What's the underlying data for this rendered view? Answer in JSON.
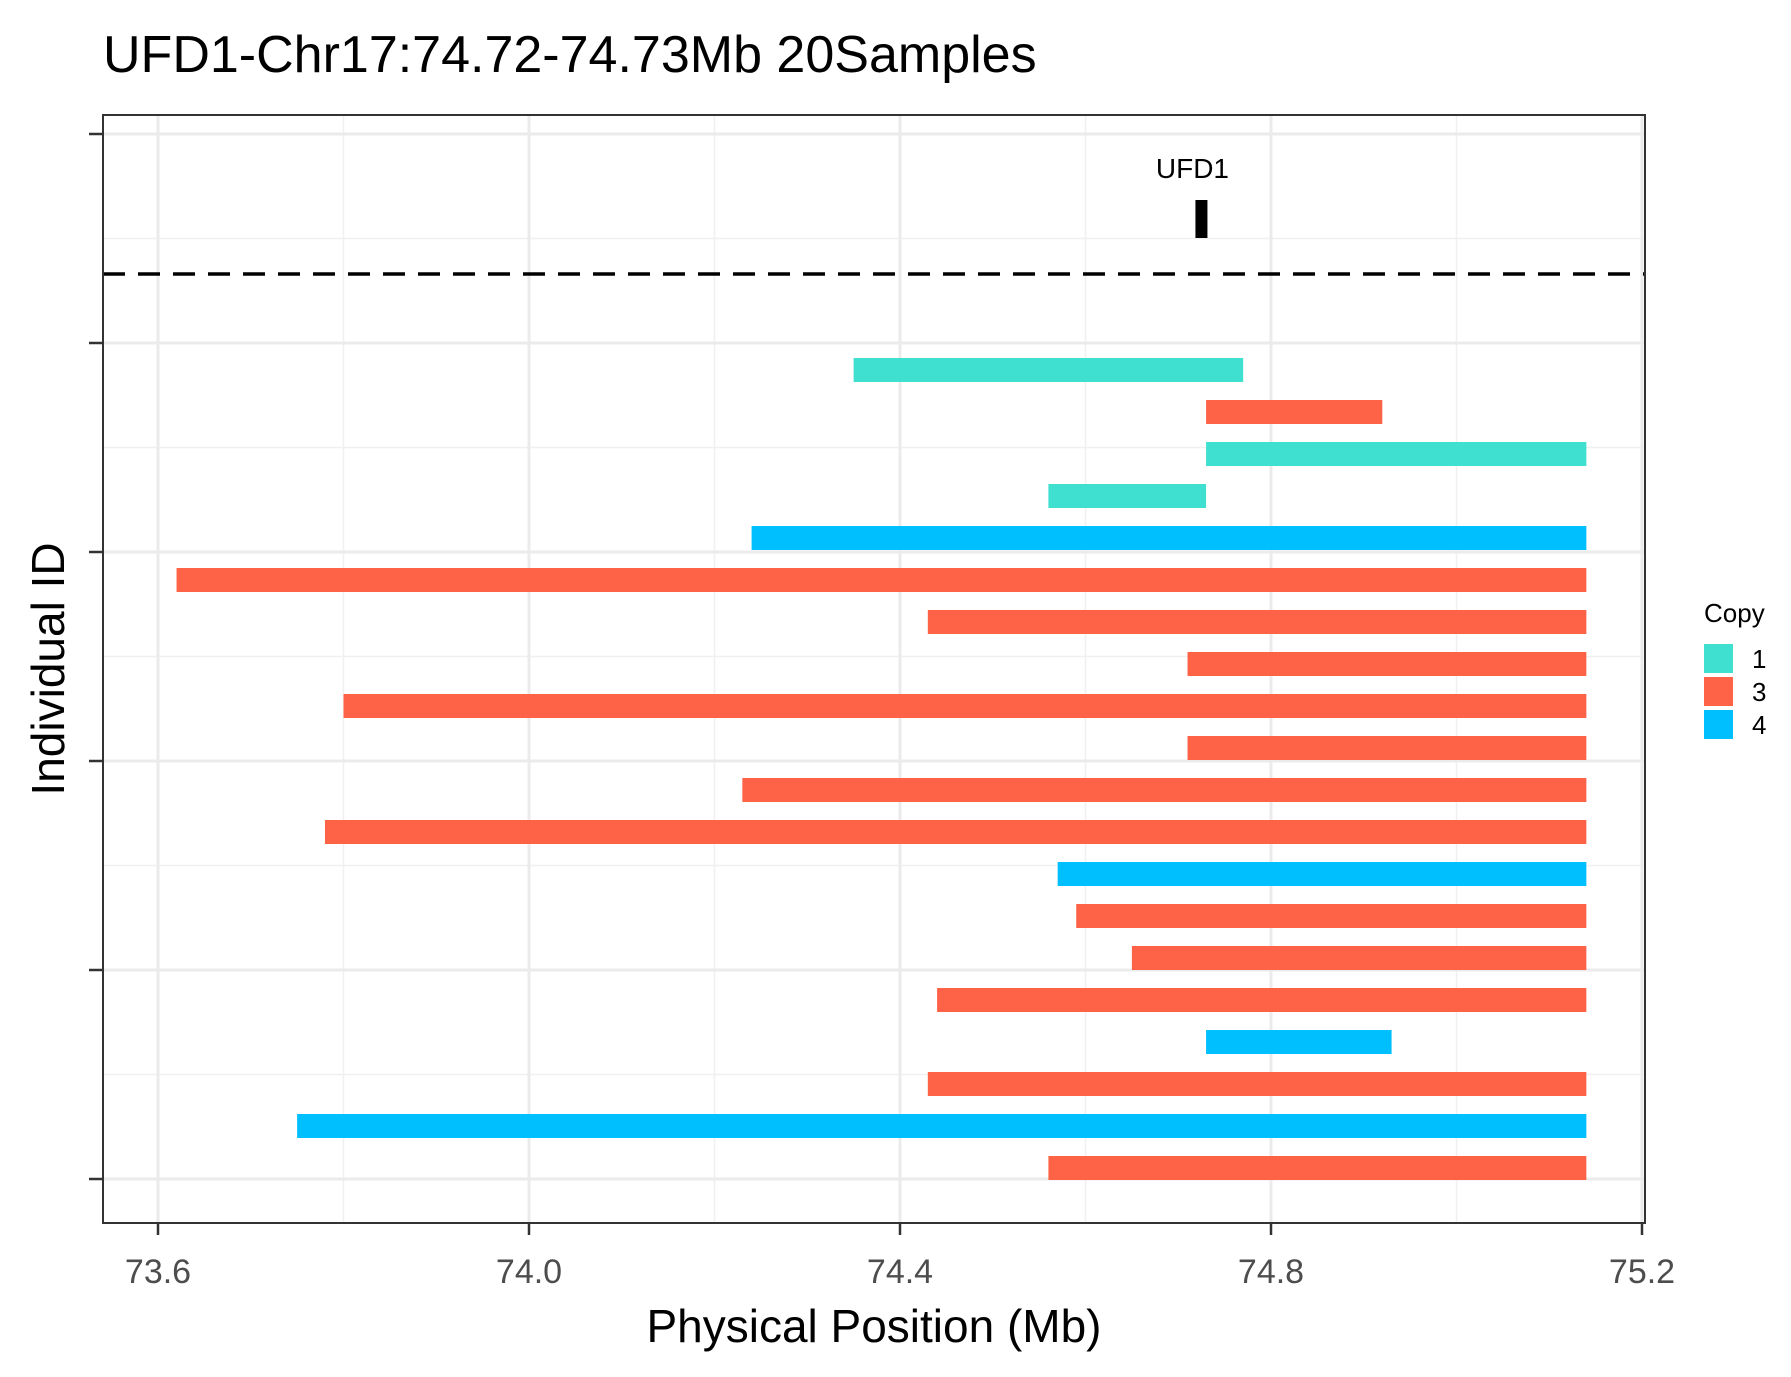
{
  "chart_data": {
    "type": "bar",
    "orientation": "horizontal-segments",
    "title": "UFD1-Chr17:74.72-74.73Mb 20Samples",
    "xlabel": "Physical Position (Mb)",
    "ylabel": "Individual ID",
    "xlim": [
      73.55,
      75.21
    ],
    "xticks": [
      73.6,
      74.0,
      74.4,
      74.8,
      75.2
    ],
    "xtick_labels": [
      "73.6",
      "74.0",
      "74.4",
      "74.8",
      "75.2"
    ],
    "grid": true,
    "gene": {
      "name": "UFD1",
      "start": 74.72,
      "end": 74.73
    },
    "legend": {
      "title": "Copy",
      "position": "right",
      "items": [
        {
          "label": "1",
          "color": "#40e0d0"
        },
        {
          "label": "3",
          "color": "#ff6347"
        },
        {
          "label": "4",
          "color": "#00bfff"
        }
      ]
    },
    "segments": [
      {
        "start": 74.35,
        "end": 74.77,
        "copy": "1"
      },
      {
        "start": 74.73,
        "end": 74.92,
        "copy": "3"
      },
      {
        "start": 74.73,
        "end": 75.14,
        "copy": "1"
      },
      {
        "start": 74.56,
        "end": 74.73,
        "copy": "1"
      },
      {
        "start": 74.24,
        "end": 75.14,
        "copy": "4"
      },
      {
        "start": 73.62,
        "end": 75.14,
        "copy": "3"
      },
      {
        "start": 74.43,
        "end": 75.14,
        "copy": "3"
      },
      {
        "start": 74.71,
        "end": 75.14,
        "copy": "3"
      },
      {
        "start": 73.8,
        "end": 75.14,
        "copy": "3"
      },
      {
        "start": 74.71,
        "end": 75.14,
        "copy": "3"
      },
      {
        "start": 74.23,
        "end": 75.14,
        "copy": "3"
      },
      {
        "start": 73.78,
        "end": 75.14,
        "copy": "3"
      },
      {
        "start": 74.57,
        "end": 75.14,
        "copy": "4"
      },
      {
        "start": 74.59,
        "end": 75.14,
        "copy": "3"
      },
      {
        "start": 74.65,
        "end": 75.14,
        "copy": "3"
      },
      {
        "start": 74.44,
        "end": 75.14,
        "copy": "3"
      },
      {
        "start": 74.73,
        "end": 74.93,
        "copy": "4"
      },
      {
        "start": 74.43,
        "end": 75.14,
        "copy": "3"
      },
      {
        "start": 73.75,
        "end": 75.14,
        "copy": "4"
      },
      {
        "start": 74.56,
        "end": 75.14,
        "copy": "3"
      }
    ]
  }
}
